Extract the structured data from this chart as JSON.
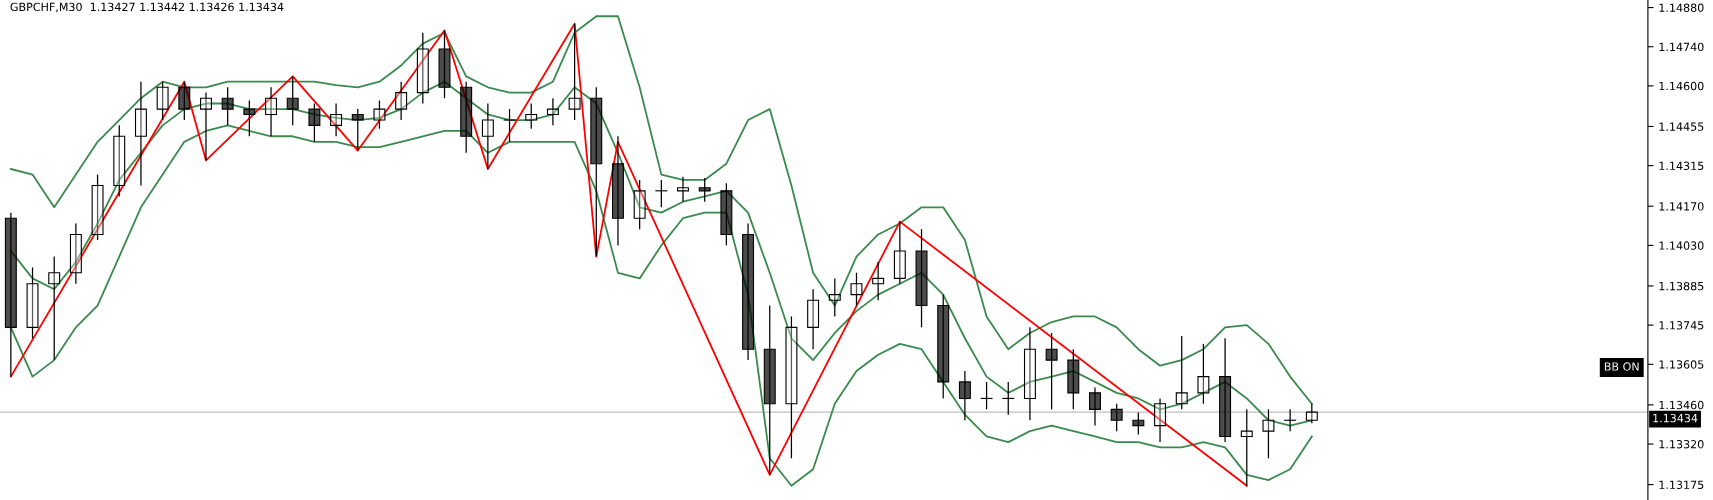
{
  "chart_data": {
    "type": "candlestick",
    "title": "GBPCHF,M30  1.13427 1.13442 1.13426 1.13434",
    "categories": [
      null,
      null,
      null,
      null,
      null,
      null,
      null,
      null,
      null,
      null,
      null,
      null,
      null,
      null,
      null,
      null,
      null,
      null,
      null,
      null,
      null,
      null,
      null,
      null,
      null,
      null,
      null,
      null,
      null,
      null,
      null,
      null,
      null,
      null,
      null,
      null,
      null,
      null,
      null,
      null,
      null,
      null,
      null,
      null,
      null,
      null,
      null,
      null,
      null,
      null,
      null,
      null,
      null,
      null,
      null,
      null,
      null,
      null,
      null,
      null,
      null,
      null,
      null,
      null,
      null,
      null,
      null,
      null,
      null,
      null,
      null,
      null,
      null,
      null,
      null,
      null
    ],
    "color": "#000000",
    "ohlc": [
      [
        1.14127,
        1.14147,
        1.13561,
        1.13737
      ],
      [
        1.13737,
        1.13951,
        1.13698,
        1.13893
      ],
      [
        1.13893,
        1.1399,
        1.1362,
        1.13932
      ],
      [
        1.13932,
        1.14108,
        1.13893,
        1.14069
      ],
      [
        1.14069,
        1.14283,
        1.14049,
        1.14244
      ],
      [
        1.14244,
        1.14459,
        1.14205,
        1.1442
      ],
      [
        1.1442,
        1.14615,
        1.14244,
        1.14517
      ],
      [
        1.14517,
        1.14615,
        1.14478,
        1.14595
      ],
      [
        1.14595,
        1.14615,
        1.14478,
        1.14517
      ],
      [
        1.14517,
        1.14576,
        1.14334,
        1.14556
      ],
      [
        1.14556,
        1.14595,
        1.14459,
        1.14517
      ],
      [
        1.14517,
        1.14548,
        1.1442,
        1.14498
      ],
      [
        1.14498,
        1.14595,
        1.1442,
        1.14556
      ],
      [
        1.14556,
        1.14634,
        1.14459,
        1.14517
      ],
      [
        1.14517,
        1.14537,
        1.144,
        1.14459
      ],
      [
        1.14459,
        1.14537,
        1.1442,
        1.14498
      ],
      [
        1.14498,
        1.14517,
        1.14369,
        1.14478
      ],
      [
        1.14478,
        1.14548,
        1.14447,
        1.14517
      ],
      [
        1.14517,
        1.14615,
        1.14478,
        1.14576
      ],
      [
        1.14576,
        1.1479,
        1.14537,
        1.14732
      ],
      [
        1.14732,
        1.14798,
        1.14556,
        1.14595
      ],
      [
        1.14595,
        1.14615,
        1.14361,
        1.1442
      ],
      [
        1.1442,
        1.14537,
        1.14303,
        1.14478
      ],
      [
        1.14478,
        1.14517,
        1.144,
        1.14478
      ],
      [
        1.14478,
        1.14537,
        1.14447,
        1.14498
      ],
      [
        1.14498,
        1.14556,
        1.14459,
        1.14517
      ],
      [
        1.14517,
        1.14822,
        1.14478,
        1.14556
      ],
      [
        1.14556,
        1.14595,
        1.1399,
        1.14322
      ],
      [
        1.14322,
        1.1442,
        1.1403,
        1.14127
      ],
      [
        1.14127,
        1.14264,
        1.14088,
        1.14225
      ],
      [
        1.14225,
        1.14264,
        1.14166,
        1.14225
      ],
      [
        1.14225,
        1.14275,
        1.14186,
        1.14236
      ],
      [
        1.14236,
        1.14271,
        1.14186,
        1.14225
      ],
      [
        1.14225,
        1.14252,
        1.1403,
        1.14069
      ],
      [
        1.14069,
        1.14108,
        1.1362,
        1.13659
      ],
      [
        1.13659,
        1.13815,
        1.1321,
        1.13464
      ],
      [
        1.13464,
        1.13776,
        1.13269,
        1.13737
      ],
      [
        1.13737,
        1.13873,
        1.13659,
        1.13834
      ],
      [
        1.13834,
        1.13912,
        1.13776,
        1.13854
      ],
      [
        1.13854,
        1.13932,
        1.13815,
        1.13893
      ],
      [
        1.13893,
        1.13971,
        1.13834,
        1.13912
      ],
      [
        1.13912,
        1.14115,
        1.13893,
        1.1401
      ],
      [
        1.1401,
        1.14088,
        1.13737,
        1.13815
      ],
      [
        1.13815,
        1.13854,
        1.13483,
        1.13542
      ],
      [
        1.13542,
        1.13581,
        1.13405,
        1.13483
      ],
      [
        1.13483,
        1.13542,
        1.13444,
        1.13483
      ],
      [
        1.13483,
        1.13542,
        1.13425,
        1.13483
      ],
      [
        1.13483,
        1.13737,
        1.13405,
        1.13659
      ],
      [
        1.13659,
        1.13717,
        1.13444,
        1.1362
      ],
      [
        1.1362,
        1.13659,
        1.13444,
        1.13503
      ],
      [
        1.13503,
        1.13522,
        1.13386,
        1.13444
      ],
      [
        1.13444,
        1.13464,
        1.13366,
        1.13405
      ],
      [
        1.13405,
        1.13433,
        1.13354,
        1.13386
      ],
      [
        1.13386,
        1.13483,
        1.13327,
        1.13464
      ],
      [
        1.13464,
        1.13706,
        1.13444,
        1.13503
      ],
      [
        1.13503,
        1.13678,
        1.13464,
        1.13561
      ],
      [
        1.13561,
        1.13698,
        1.13327,
        1.13347
      ],
      [
        1.13347,
        1.13444,
        1.13171,
        1.13366
      ],
      [
        1.13366,
        1.13444,
        1.13269,
        1.13405
      ],
      [
        1.13405,
        1.13444,
        1.13366,
        1.13405
      ],
      [
        1.13405,
        1.13464,
        1.13394,
        1.13434
      ],
      null,
      null,
      null,
      null,
      null,
      null,
      null,
      null,
      null,
      null,
      null,
      null,
      null,
      null,
      null
    ],
    "series": [
      {
        "type": "line",
        "color": "#3a8a4e",
        "values": [
          1.14303,
          1.14283,
          1.14166,
          1.14283,
          1.144,
          1.14478,
          1.14556,
          1.14615,
          1.14595,
          1.14595,
          1.14615,
          1.14615,
          1.14615,
          1.14615,
          1.14615,
          1.14603,
          1.14595,
          1.14615,
          1.14673,
          1.14751,
          1.1479,
          1.14634,
          1.14595,
          1.14576,
          1.14576,
          1.14615,
          1.1479,
          1.14849,
          1.14849,
          1.14595,
          1.14283,
          1.14264,
          1.14264,
          1.14322,
          1.14478,
          1.14517,
          1.14244,
          1.13932,
          1.13815,
          1.1399,
          1.14069,
          1.14108,
          1.14166,
          1.14166,
          1.14049,
          1.13776,
          1.13659,
          1.13717,
          1.13756,
          1.13776,
          1.13776,
          1.13737,
          1.13659,
          1.136,
          1.1362,
          1.13659,
          1.13737,
          1.13745,
          1.13678,
          1.13561,
          1.13464,
          null,
          null,
          null,
          null,
          null,
          null,
          null,
          null,
          null,
          null,
          null,
          null,
          null,
          null,
          null
        ]
      },
      {
        "type": "line",
        "color": "#3a8a4e",
        "values": [
          1.1401,
          1.13912,
          1.13873,
          1.13971,
          1.14108,
          1.14264,
          1.14361,
          1.14459,
          1.14517,
          1.14537,
          1.14537,
          1.14517,
          1.14517,
          1.14517,
          1.14498,
          1.14486,
          1.14478,
          1.14486,
          1.14517,
          1.14576,
          1.14615,
          1.14556,
          1.14498,
          1.14478,
          1.14478,
          1.14498,
          1.14595,
          1.14537,
          1.14361,
          1.14166,
          1.14147,
          1.14186,
          1.14205,
          1.14225,
          1.14147,
          1.13932,
          1.13698,
          1.1362,
          1.13717,
          1.13795,
          1.13854,
          1.13893,
          1.13932,
          1.13854,
          1.13698,
          1.13561,
          1.13503,
          1.13542,
          1.13561,
          1.13581,
          1.13542,
          1.13503,
          1.13483,
          1.13444,
          1.13464,
          1.13503,
          1.13542,
          1.13483,
          1.13405,
          1.13386,
          1.13405,
          null,
          null,
          null,
          null,
          null,
          null,
          null,
          null,
          null,
          null,
          null,
          null,
          null,
          null,
          null
        ]
      },
      {
        "type": "line",
        "color": "#3a8a4e",
        "values": [
          1.13737,
          1.13561,
          1.1362,
          1.13737,
          1.13815,
          1.1399,
          1.14166,
          1.14283,
          1.144,
          1.14439,
          1.14459,
          1.14439,
          1.1442,
          1.1442,
          1.144,
          1.144,
          1.14381,
          1.14381,
          1.144,
          1.1442,
          1.14439,
          1.14439,
          1.14361,
          1.144,
          1.144,
          1.144,
          1.144,
          1.14225,
          1.13932,
          1.13912,
          1.1403,
          1.14127,
          1.14147,
          1.14147,
          1.13854,
          1.13269,
          1.13171,
          1.1323,
          1.13464,
          1.13581,
          1.13639,
          1.13678,
          1.13659,
          1.13542,
          1.13425,
          1.13347,
          1.13327,
          1.13366,
          1.13386,
          1.13366,
          1.13347,
          1.13327,
          1.13327,
          1.13308,
          1.13308,
          1.13327,
          1.13308,
          1.1321,
          1.13191,
          1.1323,
          1.13347,
          null,
          null,
          null,
          null,
          null,
          null,
          null,
          null,
          null,
          null,
          null,
          null,
          null,
          null,
          null
        ]
      },
      {
        "type": "line",
        "color": "#ff0000",
        "values": [
          1.13561,
          null,
          null,
          null,
          null,
          null,
          null,
          null,
          1.14615,
          1.14334,
          null,
          null,
          null,
          1.14634,
          null,
          null,
          1.14369,
          null,
          null,
          null,
          1.14798,
          null,
          1.14303,
          null,
          null,
          null,
          1.14822,
          1.1399,
          1.144,
          null,
          null,
          null,
          null,
          null,
          null,
          1.1321,
          null,
          null,
          null,
          null,
          null,
          1.14115,
          null,
          null,
          null,
          null,
          null,
          null,
          null,
          null,
          null,
          null,
          null,
          null,
          null,
          null,
          null,
          1.13171,
          null,
          null,
          null,
          null,
          null,
          null,
          null,
          null,
          null,
          null,
          null,
          null,
          null,
          null,
          null,
          null,
          null,
          null
        ]
      }
    ],
    "ylim": [
      1.1312,
      1.14907
    ],
    "yticks": [
      {
        "value": 1.1488,
        "label": "1.14880"
      },
      {
        "value": 1.1474,
        "label": "1.14740"
      },
      {
        "value": 1.146,
        "label": "1.14600"
      },
      {
        "value": 1.14455,
        "label": "1.14455"
      },
      {
        "value": 1.14315,
        "label": "1.14315"
      },
      {
        "value": 1.1417,
        "label": "1.14170"
      },
      {
        "value": 1.1403,
        "label": "1.14030"
      },
      {
        "value": 1.13885,
        "label": "1.13885"
      },
      {
        "value": 1.13745,
        "label": "1.13745"
      },
      {
        "value": 1.13605,
        "label": "1.13605"
      },
      {
        "value": 1.1346,
        "label": "1.13460"
      },
      {
        "value": 1.1332,
        "label": "1.13320"
      },
      {
        "value": 1.13175,
        "label": "1.13175"
      }
    ],
    "ref_lines": [
      {
        "axis": "y",
        "value": 1.13434,
        "label": "1.13434",
        "color": "#c0c0c0"
      }
    ],
    "annotations": [
      "BB ON"
    ],
    "tick_labels": "y"
  }
}
